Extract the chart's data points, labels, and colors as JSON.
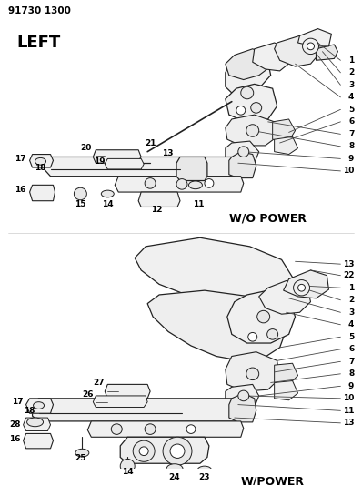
{
  "part_number": "91730 1300",
  "title_left": "LEFT",
  "label_wo_power": "W/O POWER",
  "label_w_power": "W/POWER",
  "bg_color": "#ffffff",
  "text_color": "#000000",
  "line_color": "#000000",
  "figsize": [
    3.98,
    5.33
  ],
  "dpi": 100
}
